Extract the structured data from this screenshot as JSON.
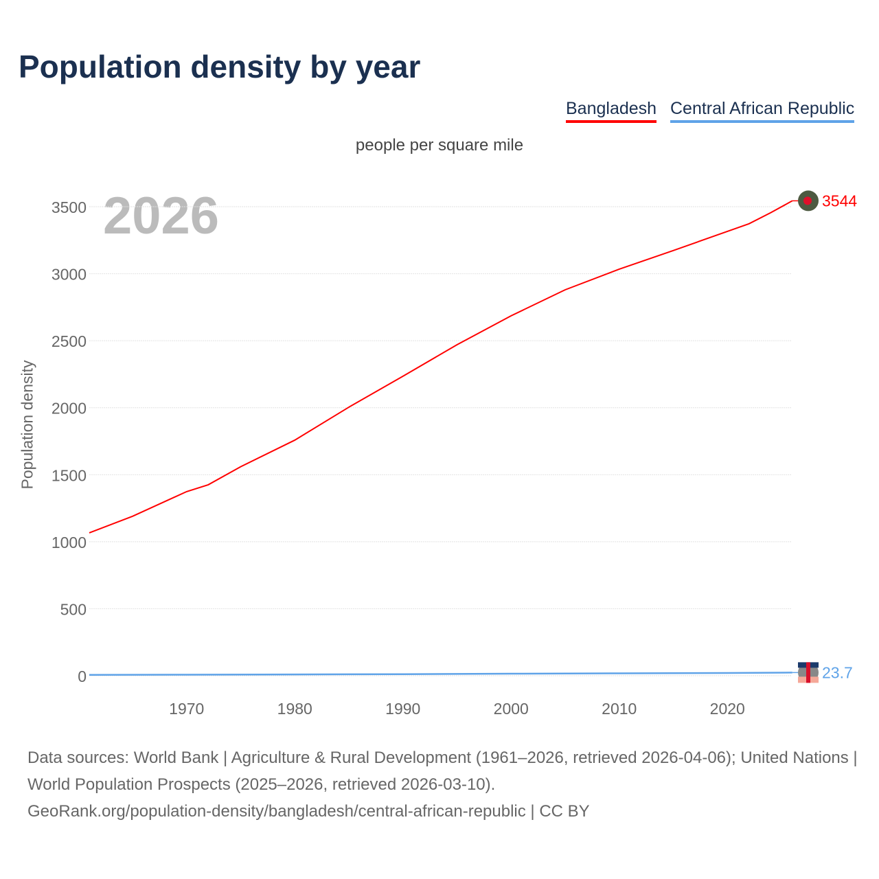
{
  "title": "Population density by year",
  "legend": [
    "Bangladesh",
    "Central African Republic"
  ],
  "unit": "people per square mile",
  "year_watermark": "2026",
  "footer": {
    "line1": "Data sources: World Bank | Agriculture & Rural Development (1961–2026, retrieved 2026-04-06); United Nations | World Population Prospects (2025–2026, retrieved 2026-03-10).",
    "line2": "GeoRank.org/population-density/bangladesh/central-african-republic | CC BY"
  },
  "chart_data": {
    "type": "line",
    "title": "Population density by year",
    "xlabel": "",
    "ylabel": "Population density",
    "xlim": [
      1961,
      2026
    ],
    "ylim": [
      0,
      3600
    ],
    "xticks": [
      "1970",
      "1980",
      "1990",
      "2000",
      "2010",
      "2020"
    ],
    "yticks": [
      "0",
      "500",
      "1000",
      "1500",
      "2000",
      "2500",
      "3000",
      "3500"
    ],
    "grid": true,
    "legend_position": "top-right",
    "series": [
      {
        "name": "Bangladesh",
        "color": "#ff0000",
        "end_label": "3544",
        "x": [
          1961,
          1965,
          1970,
          1972,
          1975,
          1980,
          1985,
          1990,
          1995,
          2000,
          2005,
          2010,
          2015,
          2020,
          2022,
          2024,
          2026
        ],
        "y": [
          1066,
          1190,
          1374,
          1425,
          1560,
          1758,
          2004,
          2235,
          2470,
          2686,
          2880,
          3034,
          3173,
          3316,
          3373,
          3455,
          3544
        ]
      },
      {
        "name": "Central African Republic",
        "color": "#5fa3e8",
        "end_label": "23.7",
        "x": [
          1961,
          1970,
          1980,
          1990,
          2000,
          2010,
          2020,
          2026
        ],
        "y": [
          6.5,
          7.6,
          9.4,
          11.8,
          15.2,
          18.0,
          20.5,
          23.7
        ]
      }
    ]
  }
}
